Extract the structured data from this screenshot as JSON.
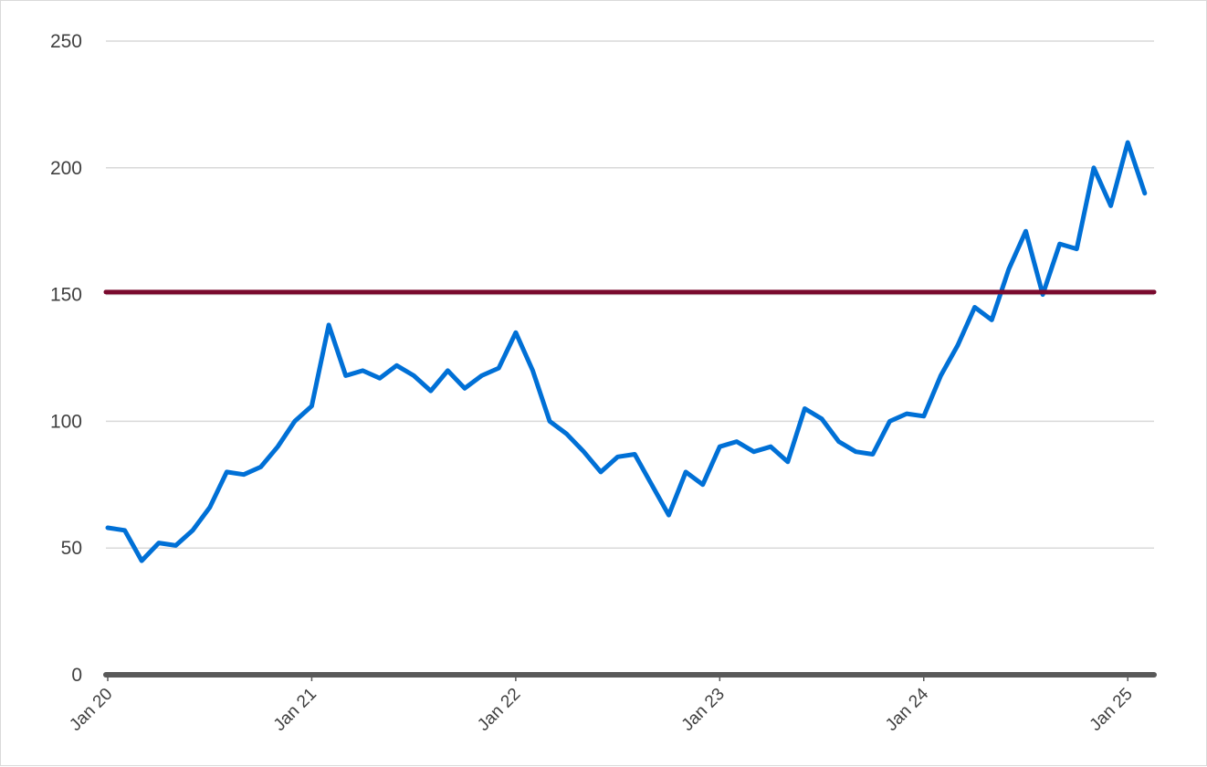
{
  "chart_data": {
    "type": "line",
    "title": "",
    "xlabel": "",
    "ylabel": "",
    "xlim": [
      "2020-01",
      "2025-02"
    ],
    "ylim": [
      0,
      250
    ],
    "y_ticks": [
      0,
      50,
      100,
      150,
      200,
      250
    ],
    "x_ticks": [
      "Jan 20",
      "Jan 21",
      "Jan 22",
      "Jan 23",
      "Jan 24",
      "Jan 25"
    ],
    "grid": true,
    "legend": "none",
    "series": [
      {
        "color": "#0070d6",
        "x": [
          "2020-01",
          "2020-02",
          "2020-03",
          "2020-04",
          "2020-05",
          "2020-06",
          "2020-07",
          "2020-08",
          "2020-09",
          "2020-10",
          "2020-11",
          "2020-12",
          "2021-01",
          "2021-02",
          "2021-03",
          "2021-04",
          "2021-05",
          "2021-06",
          "2021-07",
          "2021-08",
          "2021-09",
          "2021-10",
          "2021-11",
          "2021-12",
          "2022-01",
          "2022-02",
          "2022-03",
          "2022-04",
          "2022-05",
          "2022-06",
          "2022-07",
          "2022-08",
          "2022-09",
          "2022-10",
          "2022-11",
          "2022-12",
          "2023-01",
          "2023-02",
          "2023-03",
          "2023-04",
          "2023-05",
          "2023-06",
          "2023-07",
          "2023-08",
          "2023-09",
          "2023-10",
          "2023-11",
          "2023-12",
          "2024-01",
          "2024-02",
          "2024-03",
          "2024-04",
          "2024-05",
          "2024-06",
          "2024-07",
          "2024-08",
          "2024-09",
          "2024-10",
          "2024-11",
          "2024-12",
          "2025-01",
          "2025-02"
        ],
        "y": [
          58,
          57,
          45,
          52,
          51,
          57,
          66,
          80,
          79,
          82,
          90,
          100,
          106,
          138,
          118,
          120,
          117,
          122,
          118,
          112,
          120,
          113,
          118,
          121,
          135,
          120,
          100,
          95,
          88,
          80,
          86,
          87,
          75,
          63,
          80,
          75,
          90,
          92,
          88,
          90,
          84,
          105,
          101,
          92,
          88,
          87,
          100,
          103,
          102,
          118,
          130,
          145,
          140,
          160,
          175,
          150,
          170,
          168,
          200,
          185,
          210,
          190
        ],
        "values": [
          58,
          57,
          45,
          52,
          51,
          57,
          66,
          80,
          79,
          82,
          90,
          100,
          106,
          138,
          118,
          120,
          117,
          122,
          118,
          112,
          120,
          113,
          118,
          121,
          135,
          120,
          100,
          95,
          88,
          80,
          86,
          87,
          75,
          63,
          80,
          75,
          90,
          92,
          88,
          90,
          84,
          105,
          101,
          92,
          88,
          87,
          100,
          103,
          102,
          118,
          130,
          145,
          140,
          160,
          175,
          150,
          170,
          168,
          200,
          185,
          210,
          190
        ]
      }
    ],
    "reference_line": {
      "y": 151,
      "color": "#7a0a2e"
    },
    "zero_line": {
      "y": 0,
      "color": "#595959"
    }
  }
}
